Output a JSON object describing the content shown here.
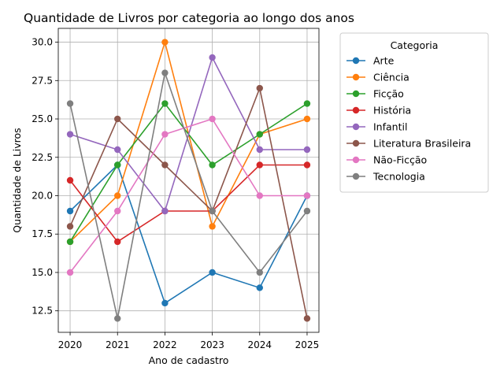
{
  "chart_data": {
    "type": "line",
    "title": "Quantidade de Livros por categoria ao longo dos anos",
    "xlabel": "Ano de cadastro",
    "ylabel": "Quantidade de Livros",
    "x": [
      2020,
      2021,
      2022,
      2023,
      2024,
      2025
    ],
    "x_tick_labels": [
      "2020",
      "2021",
      "2022",
      "2023",
      "2024",
      "2025"
    ],
    "y_ticks": [
      12.5,
      15.0,
      17.5,
      20.0,
      22.5,
      25.0,
      27.5,
      30.0
    ],
    "y_tick_labels": [
      "12.5",
      "15.0",
      "17.5",
      "20.0",
      "22.5",
      "25.0",
      "27.5",
      "30.0"
    ],
    "xlim": [
      2019.75,
      2025.25
    ],
    "ylim": [
      11.1,
      30.9
    ],
    "grid": true,
    "legend": {
      "title": "Categoria",
      "placement": "outside-right"
    },
    "series": [
      {
        "name": "Arte",
        "color": "#1f77b4",
        "values": [
          19,
          22,
          13,
          15,
          14,
          20
        ]
      },
      {
        "name": "Ciência",
        "color": "#ff7f0e",
        "values": [
          17,
          20,
          30,
          18,
          24,
          25
        ]
      },
      {
        "name": "Ficção",
        "color": "#2ca02c",
        "values": [
          17,
          22,
          26,
          22,
          24,
          26
        ]
      },
      {
        "name": "História",
        "color": "#d62728",
        "values": [
          21,
          17,
          19,
          19,
          22,
          22
        ]
      },
      {
        "name": "Infantil",
        "color": "#9467bd",
        "values": [
          24,
          23,
          19,
          29,
          23,
          23
        ]
      },
      {
        "name": "Literatura Brasileira",
        "color": "#8c564b",
        "values": [
          18,
          25,
          22,
          19,
          27,
          12
        ]
      },
      {
        "name": "Não-Ficção",
        "color": "#e377c2",
        "values": [
          15,
          19,
          24,
          25,
          20,
          20
        ]
      },
      {
        "name": "Tecnologia",
        "color": "#7f7f7f",
        "values": [
          26,
          12,
          28,
          19,
          15,
          19
        ]
      }
    ]
  }
}
